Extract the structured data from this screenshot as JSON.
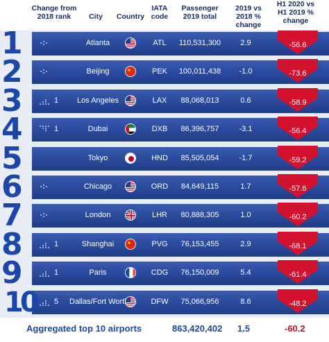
{
  "header": {
    "change": "Change from 2018 rank",
    "city": "City",
    "country": "Country",
    "iata": "IATA code",
    "passenger": "Passenger 2019 total",
    "vs2018": "2019 vs 2018 % change",
    "h1": "H1 2020 vs H1 2019 % change"
  },
  "colors": {
    "blue": "#1c47a8",
    "red": "#c8102e",
    "band": "#2a4a9c"
  },
  "rows": [
    {
      "rank": "1",
      "trend": "flat-icon",
      "trend_value": "",
      "city": "Atlanta",
      "flag": "us",
      "iata": "ATL",
      "passengers": "110,531,300",
      "vs2018": "2.9",
      "h1": "-56.6"
    },
    {
      "rank": "2",
      "trend": "flat-icon",
      "trend_value": "",
      "city": "Beijing",
      "flag": "cn",
      "iata": "PEK",
      "passengers": "100,011,438",
      "vs2018": "-1.0",
      "h1": "-73.6"
    },
    {
      "rank": "3",
      "trend": "up-icon",
      "trend_value": "1",
      "city": "Los Angeles",
      "flag": "us",
      "iata": "LAX",
      "passengers": "88,068,013",
      "vs2018": "0.6",
      "h1": "-58.9"
    },
    {
      "rank": "4",
      "trend": "down-icon",
      "trend_value": "1",
      "city": "Dubai",
      "flag": "ae",
      "iata": "DXB",
      "passengers": "86,396,757",
      "vs2018": "-3.1",
      "h1": "-56.4"
    },
    {
      "rank": "5",
      "trend": "none",
      "trend_value": "",
      "city": "Tokyo",
      "flag": "jp",
      "iata": "HND",
      "passengers": "85,505,054",
      "vs2018": "-1.7",
      "h1": "-59.2"
    },
    {
      "rank": "6",
      "trend": "flat-icon",
      "trend_value": "",
      "city": "Chicago",
      "flag": "us",
      "iata": "ORD",
      "passengers": "84,649,115",
      "vs2018": "1.7",
      "h1": "-57.6"
    },
    {
      "rank": "7",
      "trend": "flat-icon",
      "trend_value": "",
      "city": "London",
      "flag": "gb",
      "iata": "LHR",
      "passengers": "80,888,305",
      "vs2018": "1.0",
      "h1": "-60.2"
    },
    {
      "rank": "8",
      "trend": "up-icon",
      "trend_value": "1",
      "city": "Shanghai",
      "flag": "cn",
      "iata": "PVG",
      "passengers": "76,153,455",
      "vs2018": "2.9",
      "h1": "-68.1"
    },
    {
      "rank": "9",
      "trend": "up-icon",
      "trend_value": "1",
      "city": "Paris",
      "flag": "fr",
      "iata": "CDG",
      "passengers": "76,150,009",
      "vs2018": "5.4",
      "h1": "-61.4"
    },
    {
      "rank": "10",
      "trend": "up-icon",
      "trend_value": "5",
      "city": "Dallas/Fort Worth",
      "flag": "us",
      "iata": "DFW",
      "passengers": "75,066,956",
      "vs2018": "8.6",
      "h1": "-48.2"
    }
  ],
  "footer": {
    "label": "Aggregated top 10 airports",
    "passengers": "863,420,402",
    "vs2018": "1.5",
    "h1": "-60.2"
  }
}
